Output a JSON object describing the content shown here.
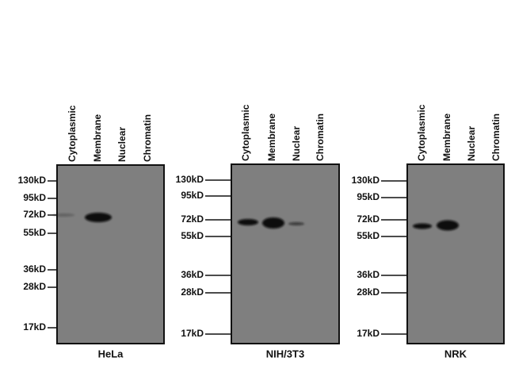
{
  "panels": [
    {
      "cell_line": "HeLa",
      "lanes": [
        "Cytoplasmic",
        "Membrane",
        "Nuclear",
        "Chromatin"
      ],
      "markers": [
        "130kD",
        "95kD",
        "72kD",
        "55kD",
        "36kD",
        "28kD",
        "17kD"
      ]
    },
    {
      "cell_line": "NIH/3T3",
      "lanes": [
        "Cytoplasmic",
        "Membrane",
        "Nuclear",
        "Chromatin"
      ],
      "markers": [
        "130kD",
        "95kD",
        "72kD",
        "55kD",
        "36kD",
        "28kD",
        "17kD"
      ]
    },
    {
      "cell_line": "NRK",
      "lanes": [
        "Cytoplasmic",
        "Membrane",
        "Nuclear",
        "Chromatin"
      ],
      "markers": [
        "130kD",
        "95kD",
        "72kD",
        "55kD",
        "36kD",
        "28kD",
        "17kD"
      ]
    }
  ]
}
